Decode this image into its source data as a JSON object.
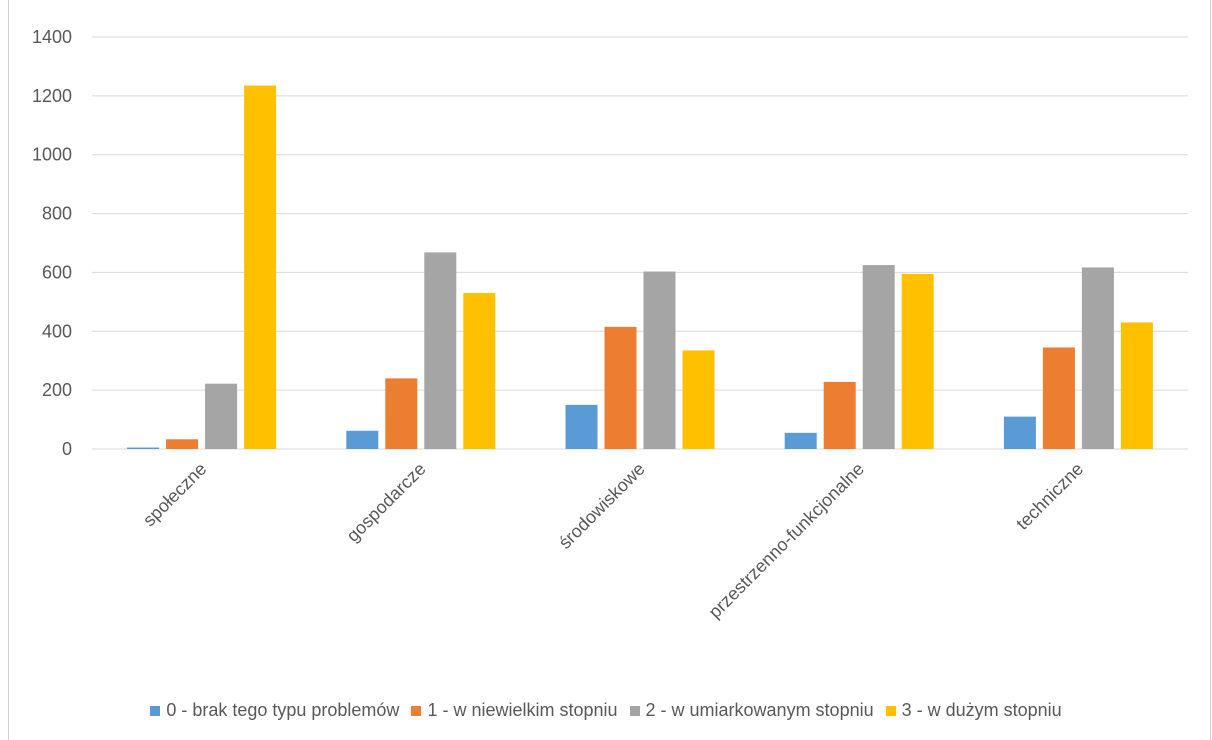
{
  "chart_data": {
    "type": "bar",
    "title": "",
    "xlabel": "",
    "ylabel": "",
    "ylim": [
      0,
      1400
    ],
    "yticks": [
      0,
      200,
      400,
      600,
      800,
      1000,
      1200,
      1400
    ],
    "grid": true,
    "legend_position": "bottom",
    "categories": [
      "społeczne",
      "gospodarcze",
      "środowiskowe",
      "przestrzenno-funkcjonalne",
      "techniczne"
    ],
    "series": [
      {
        "name": "0 - brak tego typu problemów",
        "color": "#5B9BD5",
        "values": [
          5,
          62,
          150,
          55,
          110
        ]
      },
      {
        "name": "1 - w niewielkim stopniu",
        "color": "#ED7D31",
        "values": [
          33,
          240,
          415,
          228,
          345
        ]
      },
      {
        "name": "2 - w umiarkowanym stopniu",
        "color": "#A5A5A5",
        "values": [
          222,
          668,
          603,
          625,
          617
        ]
      },
      {
        "name": "3 - w dużym stopniu",
        "color": "#FFC000",
        "values": [
          1235,
          530,
          335,
          595,
          430
        ]
      }
    ]
  }
}
